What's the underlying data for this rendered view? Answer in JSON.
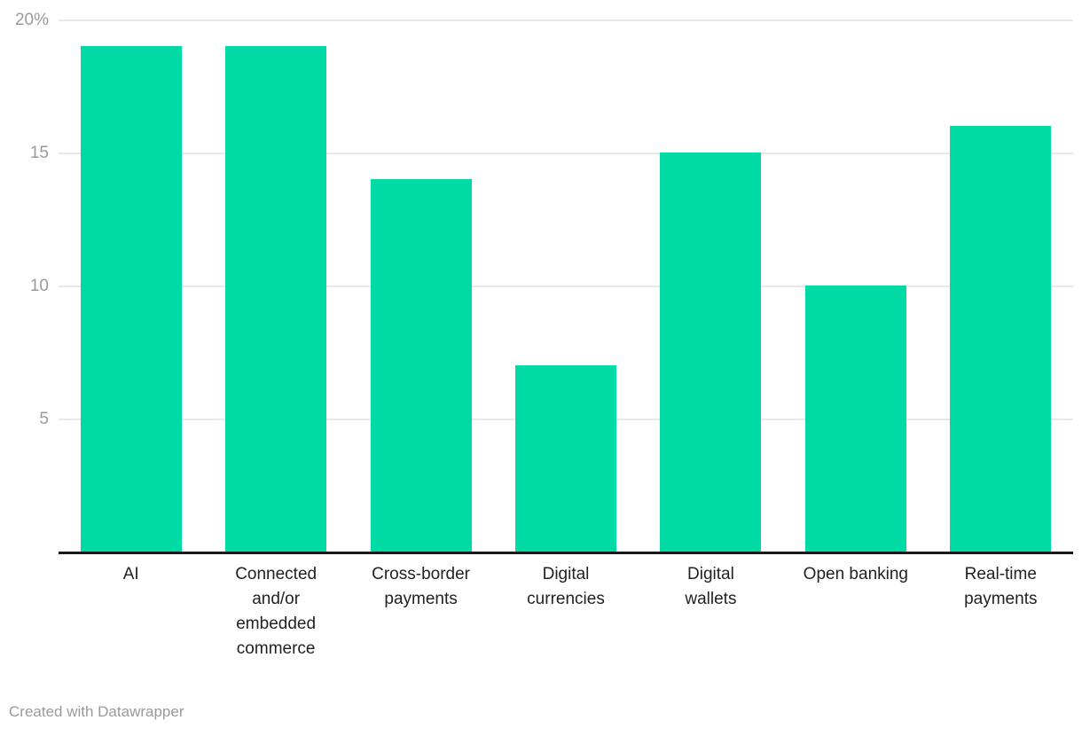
{
  "chart_data": {
    "type": "bar",
    "title": "",
    "categories": [
      "AI",
      "Connected and/or embedded commerce",
      "Cross-border payments",
      "Digital currencies",
      "Digital wallets",
      "Open banking",
      "Real-time payments"
    ],
    "values": [
      19,
      19,
      14,
      7,
      15,
      10,
      16
    ],
    "unit": "%",
    "xlabel": "",
    "ylabel": "",
    "ylim": [
      0,
      20
    ],
    "yticks": [
      5,
      10,
      15,
      20
    ],
    "ytick_labels": [
      "5",
      "10",
      "15",
      "20%"
    ],
    "grid": "horizontal",
    "legend_position": "none",
    "category_label_lines": [
      [
        "AI"
      ],
      [
        "Connected",
        "and/or",
        "embedded",
        "commerce"
      ],
      [
        "Cross-border",
        "payments"
      ],
      [
        "Digital",
        "currencies"
      ],
      [
        "Digital",
        "wallets"
      ],
      [
        "Open banking"
      ],
      [
        "Real-time",
        "payments"
      ]
    ]
  },
  "colors": {
    "bar": "#00dba6",
    "gridline": "#e8e8e8",
    "axis_line": "#18181a",
    "tick_label": "#9a9a9a",
    "category_label": "#222222",
    "credit_text": "#9a9a9a",
    "background": "#ffffff"
  },
  "footer": {
    "credit": "Created with Datawrapper"
  }
}
